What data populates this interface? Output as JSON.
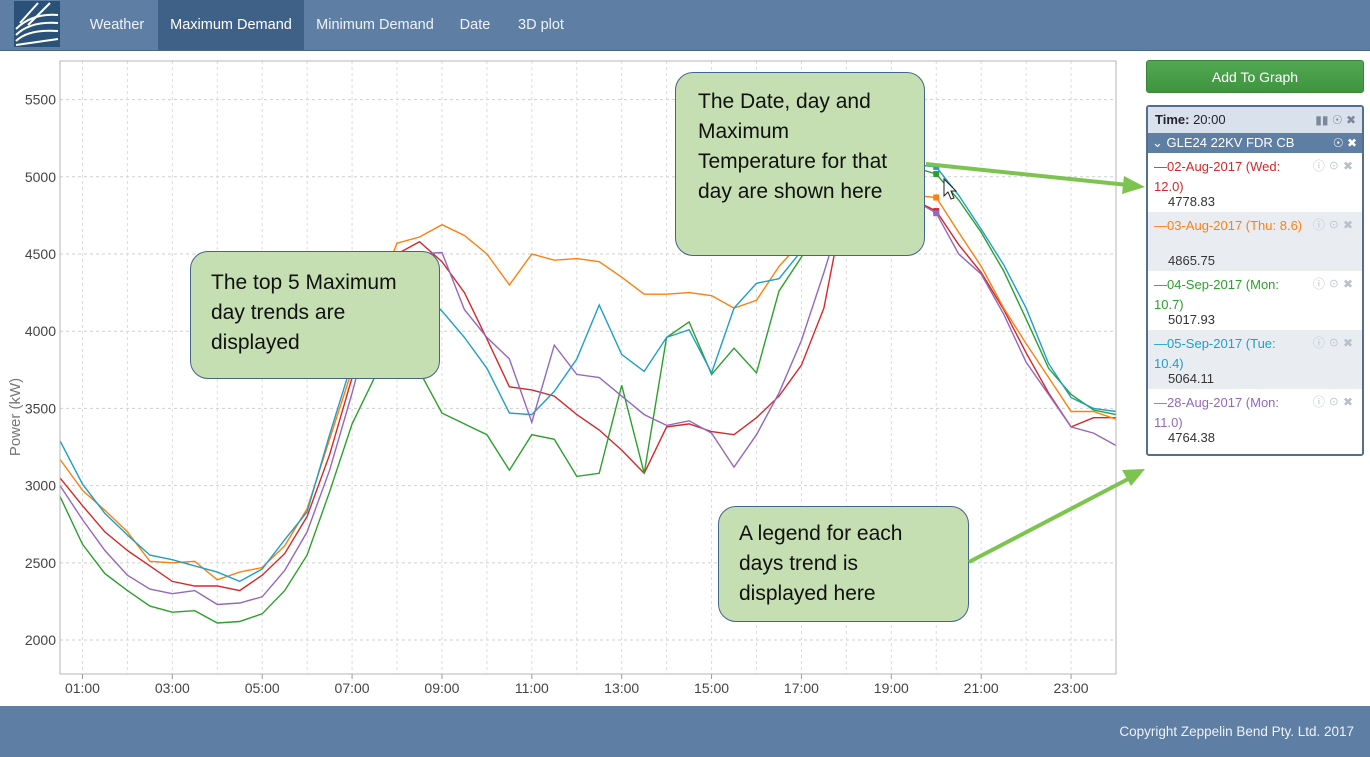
{
  "nav": {
    "logo": "logo",
    "items": [
      {
        "label": "Weather"
      },
      {
        "label": "Maximum Demand"
      },
      {
        "label": "Minimum Demand"
      },
      {
        "label": "Date"
      },
      {
        "label": "3D plot"
      }
    ],
    "active_index": 1
  },
  "sidebar": {
    "add_button_label": "Add To Graph",
    "time_label": "Time:",
    "time_value": "20:00",
    "group_name": "GLE24 22KV FDR CB",
    "entries": [
      {
        "label": "02-Aug-2017 (Wed: 12.0)",
        "value": "4778.83",
        "color": "#d62728"
      },
      {
        "label": "03-Aug-2017 (Thu: 8.6)",
        "value": "4865.75",
        "color": "#ff7f0e"
      },
      {
        "label": "04-Sep-2017 (Mon: 10.7)",
        "value": "5017.93",
        "color": "#2ca02c"
      },
      {
        "label": "05-Sep-2017 (Tue: 10.4)",
        "value": "5064.11",
        "color": "#1f9ec8"
      },
      {
        "label": "28-Aug-2017 (Mon: 11.0)",
        "value": "4764.38",
        "color": "#9467bd"
      }
    ]
  },
  "callouts": {
    "top5": "The top 5 Maximum day trends are displayed",
    "date_info": "The Date, day and Maximum Temperature for that day are shown here",
    "legend": "A legend for each days trend is displayed here"
  },
  "footer": {
    "copyright": "Copyright Zeppelin Bend Pty. Ltd. 2017"
  },
  "chart_data": {
    "type": "line",
    "ylabel": "Power (kW)",
    "xlabel": "",
    "x_ticks": [
      "01:00",
      "03:00",
      "05:00",
      "07:00",
      "09:00",
      "11:00",
      "13:00",
      "15:00",
      "17:00",
      "19:00",
      "21:00",
      "23:00"
    ],
    "y_ticks": [
      2000,
      2500,
      3000,
      3500,
      4000,
      4500,
      5000,
      5500
    ],
    "xlim": [
      0.5,
      24
    ],
    "ylim": [
      1780,
      5750
    ],
    "grid": true,
    "x": [
      0.5,
      1,
      1.5,
      2,
      2.5,
      3,
      3.5,
      4,
      4.5,
      5,
      5.5,
      6,
      6.5,
      7,
      7.5,
      8,
      8.5,
      9,
      9.5,
      10,
      10.5,
      11,
      11.5,
      12,
      12.5,
      13,
      13.5,
      14,
      14.5,
      15,
      15.5,
      16,
      16.5,
      17,
      17.5,
      18,
      18.5,
      19,
      19.5,
      20,
      20.5,
      21,
      21.5,
      22,
      22.5,
      23,
      23.5,
      24
    ],
    "series": [
      {
        "name": "02-Aug-2017 (Wed: 12.0)",
        "color": "#d62728",
        "values": [
          3050,
          2870,
          2700,
          2580,
          2480,
          2380,
          2350,
          2350,
          2320,
          2420,
          2560,
          2800,
          3200,
          3700,
          4250,
          4500,
          4580,
          4450,
          4250,
          3950,
          3640,
          3620,
          3580,
          3460,
          3360,
          3230,
          3080,
          3380,
          3400,
          3350,
          3330,
          3440,
          3580,
          3780,
          4150,
          4900,
          5000,
          4950,
          4850,
          4778,
          4560,
          4380,
          4140,
          3860,
          3600,
          3380,
          3440,
          3440
        ]
      },
      {
        "name": "03-Aug-2017 (Thu: 8.6)",
        "color": "#ff7f0e",
        "values": [
          3170,
          2970,
          2840,
          2700,
          2510,
          2500,
          2510,
          2390,
          2440,
          2470,
          2610,
          2850,
          3300,
          3750,
          4200,
          4570,
          4610,
          4690,
          4620,
          4500,
          4300,
          4500,
          4460,
          4470,
          4450,
          4350,
          4240,
          4240,
          4250,
          4230,
          4150,
          4200,
          4420,
          4580,
          4720,
          4850,
          4880,
          4900,
          4880,
          4866,
          4640,
          4420,
          4150,
          3920,
          3700,
          3480,
          3480,
          3430
        ]
      },
      {
        "name": "04-Sep-2017 (Mon: 10.7)",
        "color": "#2ca02c",
        "values": [
          2930,
          2620,
          2430,
          2320,
          2220,
          2180,
          2190,
          2110,
          2120,
          2170,
          2320,
          2550,
          2960,
          3400,
          3700,
          3780,
          3740,
          3470,
          3400,
          3330,
          3100,
          3330,
          3300,
          3060,
          3080,
          3650,
          3080,
          3960,
          4060,
          3720,
          3890,
          3730,
          4260,
          4480,
          4750,
          4900,
          5000,
          5050,
          5060,
          5018,
          4850,
          4640,
          4390,
          4080,
          3760,
          3590,
          3490,
          3460
        ]
      },
      {
        "name": "05-Sep-2017 (Tue: 10.4)",
        "color": "#1f9ec8",
        "values": [
          3290,
          3010,
          2820,
          2680,
          2550,
          2520,
          2480,
          2440,
          2380,
          2460,
          2650,
          2830,
          3330,
          3800,
          4150,
          4250,
          4280,
          4130,
          3960,
          3760,
          3470,
          3460,
          3610,
          3820,
          4170,
          3850,
          3740,
          3960,
          4010,
          3730,
          4150,
          4310,
          4340,
          4520,
          4800,
          4950,
          5050,
          5070,
          5080,
          5064,
          4880,
          4660,
          4430,
          4150,
          3790,
          3570,
          3500,
          3480
        ]
      },
      {
        "name": "28-Aug-2017 (Mon: 11.0)",
        "color": "#9467bd",
        "values": [
          3000,
          2780,
          2580,
          2420,
          2330,
          2300,
          2320,
          2230,
          2240,
          2280,
          2450,
          2700,
          3100,
          3600,
          4150,
          4450,
          4500,
          4510,
          4140,
          3960,
          3820,
          3410,
          3910,
          3720,
          3700,
          3580,
          3460,
          3390,
          3420,
          3340,
          3120,
          3330,
          3600,
          3940,
          4380,
          4850,
          4900,
          4920,
          4850,
          4764,
          4500,
          4370,
          4110,
          3800,
          3590,
          3380,
          3340,
          3260
        ]
      }
    ]
  }
}
